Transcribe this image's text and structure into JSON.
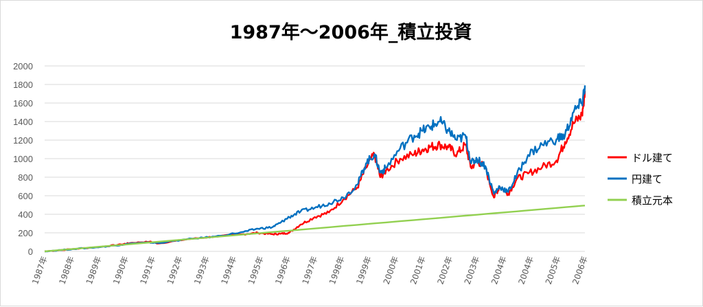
{
  "chart_data": {
    "type": "line",
    "title": "1987年～2006年_積立投資",
    "xlabel": "",
    "ylabel": "",
    "ylim": [
      0,
      2000
    ],
    "yticks": [
      0,
      200,
      400,
      600,
      800,
      1000,
      1200,
      1400,
      1600,
      1800,
      2000
    ],
    "x_tick_labels": [
      "1987年",
      "1988年",
      "1989年",
      "1990年",
      "1991年",
      "1992年",
      "1993年",
      "1994年",
      "1995年",
      "1996年",
      "1997年",
      "1998年",
      "1999年",
      "2000年",
      "2001年",
      "2002年",
      "2003年",
      "2004年",
      "2004年",
      "2005年",
      "2006年"
    ],
    "grid": true,
    "legend_position": "right",
    "x": [
      1987.0,
      1988.0,
      1989.0,
      1989.7,
      1990.0,
      1990.7,
      1991.0,
      1992.0,
      1993.0,
      1994.0,
      1994.5,
      1995.0,
      1995.3,
      1995.6,
      1996.0,
      1996.5,
      1997.0,
      1997.5,
      1998.0,
      1998.3,
      1998.6,
      1998.8,
      1999.0,
      1999.5,
      2000.0,
      2000.3,
      2000.6,
      2000.9,
      2001.2,
      2001.5,
      2001.8,
      2002.0,
      2002.2,
      2002.5,
      2002.8,
      2003.0,
      2003.3,
      2003.6,
      2004.0,
      2004.5,
      2005.0,
      2005.3,
      2005.6,
      2005.9,
      2006.0
    ],
    "series": [
      {
        "name": "ドル建て",
        "color": "#ff0000",
        "values": [
          0,
          25,
          50,
          75,
          90,
          105,
          85,
          130,
          160,
          185,
          200,
          185,
          190,
          200,
          290,
          370,
          420,
          560,
          690,
          900,
          1050,
          800,
          870,
          1000,
          1050,
          1100,
          1130,
          1150,
          1120,
          1050,
          1150,
          900,
          980,
          900,
          580,
          700,
          620,
          780,
          840,
          910,
          980,
          1180,
          1380,
          1470,
          1730
        ]
      },
      {
        "name": "円建て",
        "color": "#0070c0",
        "values": [
          0,
          25,
          48,
          70,
          85,
          95,
          90,
          130,
          160,
          210,
          245,
          260,
          310,
          370,
          430,
          470,
          520,
          580,
          720,
          950,
          1050,
          850,
          900,
          1110,
          1250,
          1300,
          1350,
          1400,
          1300,
          1200,
          1250,
          950,
          1000,
          920,
          620,
          700,
          640,
          820,
          1040,
          1150,
          1210,
          1250,
          1500,
          1600,
          1790
        ]
      },
      {
        "name": "積立元本",
        "color": "#92d050",
        "values": [
          0,
          26,
          52,
          70,
          78,
          96,
          104,
          130,
          156,
          182,
          195,
          208,
          216,
          223,
          234,
          247,
          260,
          273,
          286,
          294,
          302,
          307,
          312,
          325,
          338,
          346,
          353,
          361,
          369,
          377,
          385,
          390,
          395,
          403,
          411,
          416,
          424,
          431,
          442,
          455,
          468,
          476,
          484,
          492,
          494
        ]
      }
    ]
  }
}
